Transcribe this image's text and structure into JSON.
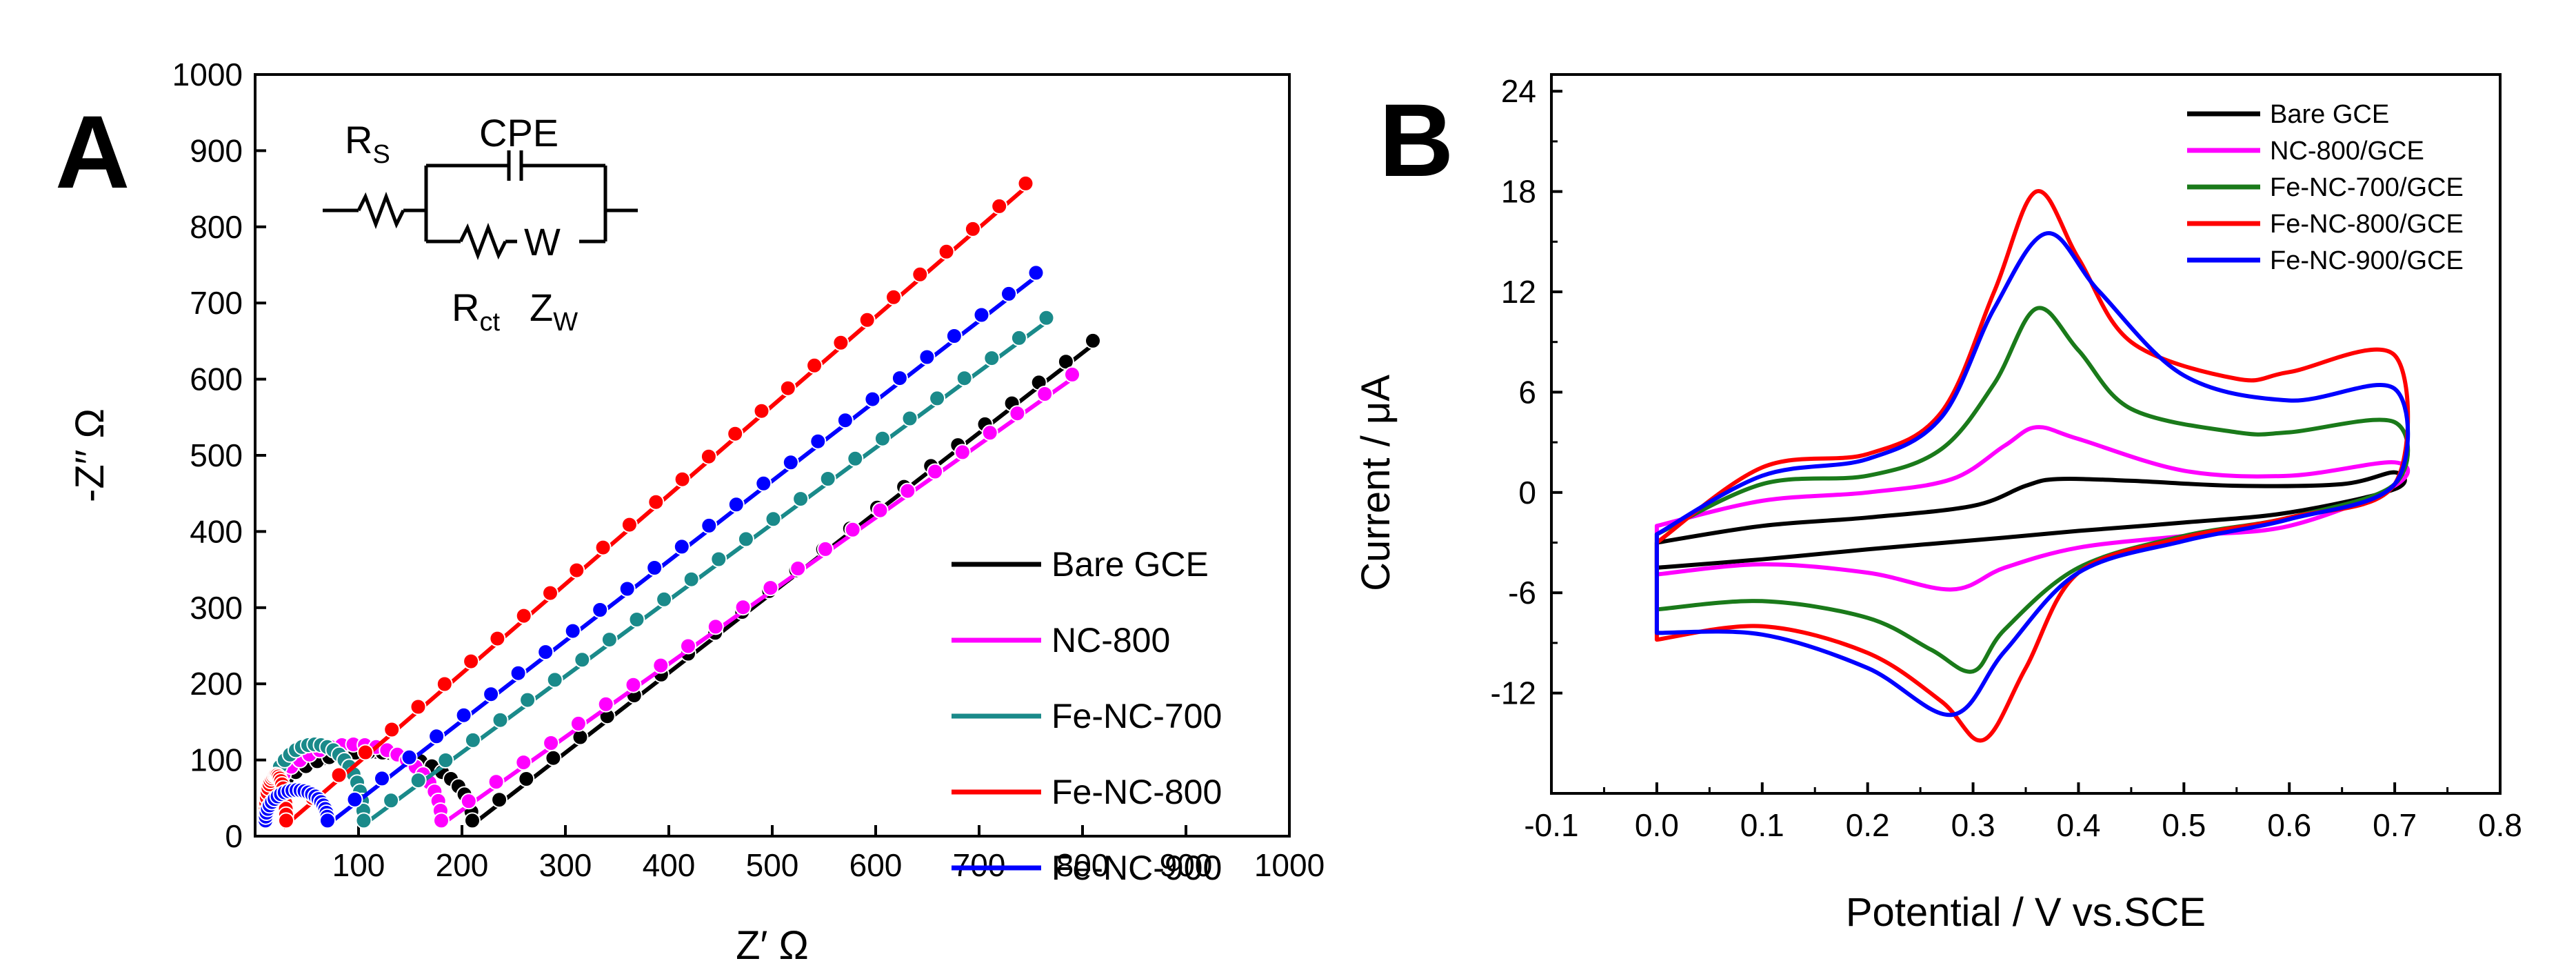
{
  "chart_data": [
    {
      "panel": "A",
      "type": "scatter",
      "title": "",
      "xlabel": "Z′ Ω",
      "ylabel": "-Z′′ Ω",
      "xlim": [
        0,
        1000
      ],
      "ylim": [
        0,
        1000
      ],
      "xticks": [
        "100",
        "200",
        "300",
        "400",
        "500",
        "600",
        "700",
        "800",
        "900",
        "1000"
      ],
      "yticks": [
        "0",
        "100",
        "200",
        "300",
        "400",
        "500",
        "600",
        "700",
        "800",
        "900",
        "1000"
      ],
      "legend_position": "bottom-right",
      "inset_circuit": {
        "rs": "R",
        "rs_sub": "S",
        "cpe": "CPE",
        "w": "W",
        "rct": "R",
        "rct_sub": "ct",
        "zw": "Z",
        "zw_sub": "W"
      },
      "series": [
        {
          "name": "Bare GCE",
          "color": "#000000",
          "rs": 10,
          "rct": 200,
          "arc_height": 90,
          "slope": 1.05,
          "tail_end_x": 810
        },
        {
          "name": "NC-800",
          "color": "#ff00ff",
          "rs": 10,
          "rct": 170,
          "arc_height": 100,
          "slope": 0.96,
          "tail_end_x": 790
        },
        {
          "name": "Fe-NC-700",
          "color": "#1a8a8a",
          "rs": 10,
          "rct": 95,
          "arc_height": 100,
          "slope": 1.0,
          "tail_end_x": 765
        },
        {
          "name": "Fe-NC-800",
          "color": "#ff0000",
          "rs": 10,
          "rct": 20,
          "arc_height": 60,
          "slope": 1.17,
          "tail_end_x": 745
        },
        {
          "name": "Fe-NC-900",
          "color": "#0000ff",
          "rs": 10,
          "rct": 60,
          "arc_height": 40,
          "slope": 1.05,
          "tail_end_x": 755
        }
      ]
    },
    {
      "panel": "B",
      "type": "line",
      "title": "",
      "xlabel": "Potential / V vs.SCE",
      "ylabel": "Current / μA",
      "xlim": [
        -0.1,
        0.8
      ],
      "ylim": [
        -18,
        25
      ],
      "xticks": [
        "-0.1",
        "0.0",
        "0.1",
        "0.2",
        "0.3",
        "0.4",
        "0.5",
        "0.6",
        "0.7",
        "0.8"
      ],
      "yticks": [
        "-12",
        "-6",
        "0",
        "6",
        "12",
        "18",
        "24"
      ],
      "legend_position": "top-right",
      "series": [
        {
          "name": "Bare GCE",
          "color": "#000000",
          "upper": [
            [
              0.0,
              -3.0
            ],
            [
              0.1,
              -2.0
            ],
            [
              0.2,
              -1.5
            ],
            [
              0.3,
              -0.8
            ],
            [
              0.35,
              0.4
            ],
            [
              0.38,
              0.8
            ],
            [
              0.45,
              0.7
            ],
            [
              0.55,
              0.4
            ],
            [
              0.65,
              0.5
            ],
            [
              0.7,
              1.2
            ]
          ],
          "lower": [
            [
              0.7,
              0.2
            ],
            [
              0.6,
              -1.2
            ],
            [
              0.5,
              -1.8
            ],
            [
              0.4,
              -2.3
            ],
            [
              0.33,
              -2.7
            ],
            [
              0.2,
              -3.4
            ],
            [
              0.1,
              -4.0
            ],
            [
              0.0,
              -4.5
            ]
          ]
        },
        {
          "name": "NC-800/GCE",
          "color": "#ff00ff",
          "upper": [
            [
              0.0,
              -2.0
            ],
            [
              0.1,
              -0.5
            ],
            [
              0.2,
              0.0
            ],
            [
              0.28,
              0.8
            ],
            [
              0.33,
              2.8
            ],
            [
              0.36,
              3.9
            ],
            [
              0.4,
              3.2
            ],
            [
              0.5,
              1.3
            ],
            [
              0.6,
              1.0
            ],
            [
              0.7,
              1.8
            ]
          ],
          "lower": [
            [
              0.7,
              0.4
            ],
            [
              0.6,
              -2.0
            ],
            [
              0.5,
              -2.6
            ],
            [
              0.4,
              -3.3
            ],
            [
              0.33,
              -4.5
            ],
            [
              0.28,
              -5.8
            ],
            [
              0.2,
              -4.8
            ],
            [
              0.1,
              -4.3
            ],
            [
              0.0,
              -4.9
            ]
          ]
        },
        {
          "name": "Fe-NC-700/GCE",
          "color": "#1a7a1a",
          "upper": [
            [
              0.0,
              -2.5
            ],
            [
              0.1,
              0.5
            ],
            [
              0.2,
              1.0
            ],
            [
              0.27,
              2.6
            ],
            [
              0.32,
              6.5
            ],
            [
              0.36,
              11.0
            ],
            [
              0.4,
              8.5
            ],
            [
              0.45,
              5.0
            ],
            [
              0.55,
              3.6
            ],
            [
              0.6,
              3.6
            ],
            [
              0.7,
              4.2
            ]
          ],
          "lower": [
            [
              0.7,
              0.5
            ],
            [
              0.6,
              -1.5
            ],
            [
              0.5,
              -2.6
            ],
            [
              0.4,
              -4.5
            ],
            [
              0.33,
              -8.2
            ],
            [
              0.3,
              -10.7
            ],
            [
              0.26,
              -9.4
            ],
            [
              0.2,
              -7.5
            ],
            [
              0.1,
              -6.5
            ],
            [
              0.0,
              -7.0
            ]
          ]
        },
        {
          "name": "Fe-NC-800/GCE",
          "color": "#ff0000",
          "upper": [
            [
              0.0,
              -3.0
            ],
            [
              0.1,
              1.5
            ],
            [
              0.2,
              2.3
            ],
            [
              0.27,
              4.8
            ],
            [
              0.32,
              12.0
            ],
            [
              0.36,
              18.0
            ],
            [
              0.4,
              14.0
            ],
            [
              0.45,
              9.0
            ],
            [
              0.55,
              6.8
            ],
            [
              0.6,
              7.2
            ],
            [
              0.7,
              8.2
            ]
          ],
          "lower": [
            [
              0.7,
              0.5
            ],
            [
              0.6,
              -1.5
            ],
            [
              0.5,
              -2.7
            ],
            [
              0.4,
              -4.8
            ],
            [
              0.35,
              -10.5
            ],
            [
              0.31,
              -14.8
            ],
            [
              0.27,
              -12.5
            ],
            [
              0.2,
              -9.6
            ],
            [
              0.1,
              -8.0
            ],
            [
              0.0,
              -8.8
            ]
          ]
        },
        {
          "name": "Fe-NC-900/GCE",
          "color": "#0000ff",
          "upper": [
            [
              0.0,
              -2.5
            ],
            [
              0.1,
              1.0
            ],
            [
              0.2,
              2.0
            ],
            [
              0.27,
              4.5
            ],
            [
              0.32,
              11.0
            ],
            [
              0.37,
              15.5
            ],
            [
              0.42,
              12.0
            ],
            [
              0.5,
              7.0
            ],
            [
              0.6,
              5.5
            ],
            [
              0.7,
              6.2
            ]
          ],
          "lower": [
            [
              0.7,
              0.5
            ],
            [
              0.6,
              -1.6
            ],
            [
              0.5,
              -2.9
            ],
            [
              0.4,
              -4.8
            ],
            [
              0.33,
              -9.5
            ],
            [
              0.28,
              -13.3
            ],
            [
              0.2,
              -10.5
            ],
            [
              0.1,
              -8.5
            ],
            [
              0.0,
              -8.4
            ]
          ]
        }
      ]
    }
  ]
}
